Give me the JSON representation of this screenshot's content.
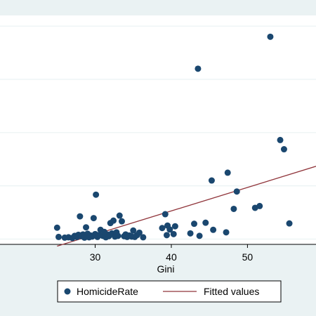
{
  "chart_data": {
    "type": "scatter",
    "title": "",
    "xlabel": "Gini",
    "ylabel": "",
    "xlim": [
      17.5,
      59
    ],
    "ylim": [
      -1.5,
      63
    ],
    "x_ticks": [
      30,
      40,
      50
    ],
    "y_gridlines": [
      0,
      15,
      30,
      45,
      60
    ],
    "grid": true,
    "legend_position": "bottom",
    "colors": {
      "background": "#eaf2f3",
      "plot_background": "#ffffff",
      "points": "#1a476f",
      "fit_line": "#90353b",
      "gridline": "#eaf2f3",
      "legend_box": "#ffffff"
    },
    "series": [
      {
        "name": "HomicideRate",
        "kind": "scatter",
        "points": [
          [
            25.0,
            3.2
          ],
          [
            25.2,
            0.6
          ],
          [
            26.0,
            0.4
          ],
          [
            26.5,
            0.5
          ],
          [
            27.0,
            0.3
          ],
          [
            27.3,
            0.9
          ],
          [
            27.6,
            0.6
          ],
          [
            27.8,
            1.2
          ],
          [
            28.0,
            6.4
          ],
          [
            28.2,
            0.8
          ],
          [
            28.4,
            1.3
          ],
          [
            28.6,
            0.4
          ],
          [
            28.8,
            3.3
          ],
          [
            29.0,
            1.5
          ],
          [
            29.2,
            0.5
          ],
          [
            29.4,
            1.0
          ],
          [
            29.6,
            0.7
          ],
          [
            29.8,
            5.9
          ],
          [
            30.0,
            1.4
          ],
          [
            30.1,
            12.5
          ],
          [
            30.3,
            0.6
          ],
          [
            30.5,
            1.1
          ],
          [
            30.7,
            2.6
          ],
          [
            31.0,
            0.9
          ],
          [
            31.2,
            2.0
          ],
          [
            31.4,
            0.5
          ],
          [
            31.6,
            1.3
          ],
          [
            31.8,
            0.8
          ],
          [
            32.0,
            4.5
          ],
          [
            32.2,
            1.6
          ],
          [
            32.4,
            5.2
          ],
          [
            32.6,
            0.7
          ],
          [
            32.8,
            1.9
          ],
          [
            33.0,
            0.9
          ],
          [
            33.2,
            6.6
          ],
          [
            33.5,
            5.0
          ],
          [
            33.8,
            0.8
          ],
          [
            34.0,
            1.3
          ],
          [
            34.2,
            0.6
          ],
          [
            34.5,
            1.0
          ],
          [
            34.8,
            0.7
          ],
          [
            35.0,
            2.4
          ],
          [
            35.2,
            0.6
          ],
          [
            35.5,
            1.1
          ],
          [
            35.8,
            1.8
          ],
          [
            36.3,
            0.5
          ],
          [
            38.8,
            3.1
          ],
          [
            39.2,
            7.0
          ],
          [
            39.5,
            3.8
          ],
          [
            39.8,
            2.7
          ],
          [
            39.4,
            1.1
          ],
          [
            40.3,
            1.4
          ],
          [
            40.5,
            3.6
          ],
          [
            42.5,
            1.6
          ],
          [
            43.0,
            4.3
          ],
          [
            43.5,
            48.0
          ],
          [
            43.7,
            0.9
          ],
          [
            44.5,
            4.6
          ],
          [
            45.3,
            16.5
          ],
          [
            45.5,
            2.6
          ],
          [
            47.2,
            1.9
          ],
          [
            47.4,
            18.7
          ],
          [
            48.2,
            8.5
          ],
          [
            48.6,
            13.4
          ],
          [
            51.0,
            8.8
          ],
          [
            51.6,
            9.3
          ],
          [
            53.0,
            57.0
          ],
          [
            54.3,
            27.9
          ],
          [
            54.8,
            25.3
          ],
          [
            55.5,
            4.4
          ]
        ]
      },
      {
        "name": "Fitted values",
        "kind": "line",
        "points": [
          [
            25.0,
            -2.0
          ],
          [
            59.0,
            20.5
          ]
        ]
      }
    ]
  }
}
